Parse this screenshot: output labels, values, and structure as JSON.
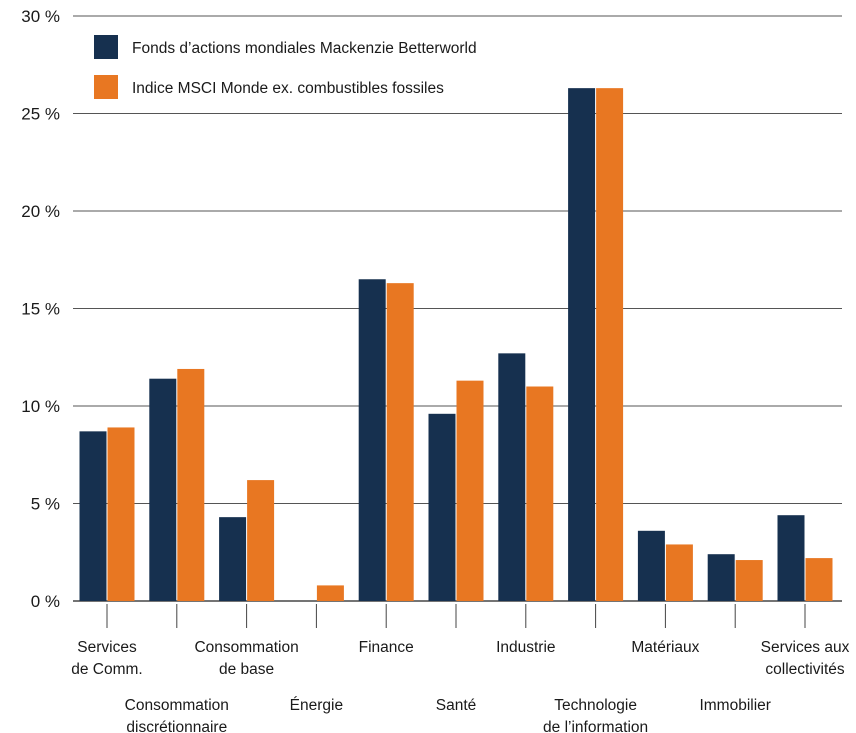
{
  "chart_data": {
    "type": "bar",
    "title": "",
    "xlabel": "",
    "ylabel": "",
    "ylim": [
      0,
      30
    ],
    "y_ticks": [
      "0 %",
      "5 %",
      "10 %",
      "15 %",
      "20 %",
      "25 %",
      "30 %"
    ],
    "grid": true,
    "legend_position": "top-left",
    "categories": [
      [
        "Services",
        "de Comm."
      ],
      [
        "Consommation",
        "discrétionnaire"
      ],
      [
        "Consommation",
        "de base"
      ],
      [
        "Énergie"
      ],
      [
        "Finance"
      ],
      [
        "Santé"
      ],
      [
        "Industrie"
      ],
      [
        "Technologie",
        "de l’information"
      ],
      [
        "Matériaux"
      ],
      [
        "Immobilier"
      ],
      [
        "Services aux",
        "collectivités"
      ]
    ],
    "series": [
      {
        "name": "Fonds d’actions mondiales Mackenzie Betterworld",
        "color": "#16304f",
        "values": [
          8.7,
          11.4,
          4.3,
          0,
          16.5,
          9.6,
          12.7,
          26.3,
          3.6,
          2.4,
          4.4
        ]
      },
      {
        "name": "Indice MSCI Monde ex. combustibles fossiles",
        "color": "#e87722",
        "values": [
          8.9,
          11.9,
          6.2,
          0.8,
          16.3,
          11.3,
          11.0,
          26.3,
          2.9,
          2.1,
          2.2
        ]
      }
    ]
  }
}
